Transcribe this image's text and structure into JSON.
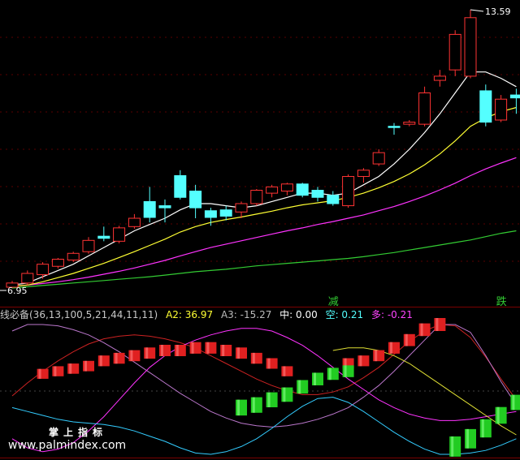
{
  "colors": {
    "up_candle": "#ff3333",
    "down_candle": "#54ffff",
    "ma_fast": "#ffffff",
    "ma_mid": "#ffff33",
    "ma_slow": "#ff33ff",
    "ma_long": "#33cc33",
    "a2": "#ffff33",
    "a3": "#bbbbbb",
    "zhong": "#ffffff",
    "kong": "#54ffff",
    "duo": "#ff44ff",
    "signal_text": "#33cc33",
    "line_red": "#cc2222",
    "line_magenta": "#ff33ff",
    "line_cyan": "#33ccff",
    "line_purple": "#bb77cc",
    "line_yellow": "#dddd33"
  },
  "indicator": {
    "name_params": "线必备(36,13,100,5,21,44,11,11)",
    "a2": "A2: 36.97",
    "a3": "A3: -15.27",
    "zhong": "中: 0.00",
    "kong": "空: 0.21",
    "duo": "多: -0.21"
  },
  "watermark": {
    "line1": "掌上指标",
    "line2": "www.palmindex.com"
  },
  "chart_data": [
    {
      "type": "candlestick",
      "high_label": "13.59",
      "low_label": "6.95",
      "annotations": [
        {
          "text": "减",
          "candle_index": 21
        },
        {
          "text": "跌",
          "candle_index": 32
        }
      ],
      "candles": [
        {
          "o": 6.95,
          "h": 7.1,
          "l": 6.93,
          "c": 7.05
        },
        {
          "o": 7.05,
          "h": 7.35,
          "l": 7.0,
          "c": 7.28
        },
        {
          "o": 7.25,
          "h": 7.55,
          "l": 7.15,
          "c": 7.5
        },
        {
          "o": 7.45,
          "h": 7.65,
          "l": 7.4,
          "c": 7.62
        },
        {
          "o": 7.6,
          "h": 7.8,
          "l": 7.55,
          "c": 7.76
        },
        {
          "o": 7.8,
          "h": 8.15,
          "l": 7.75,
          "c": 8.07
        },
        {
          "o": 8.17,
          "h": 8.4,
          "l": 8.05,
          "c": 8.12
        },
        {
          "o": 8.05,
          "h": 8.42,
          "l": 8.0,
          "c": 8.37
        },
        {
          "o": 8.4,
          "h": 8.7,
          "l": 8.35,
          "c": 8.6
        },
        {
          "o": 9.0,
          "h": 9.35,
          "l": 8.5,
          "c": 8.62
        },
        {
          "o": 8.9,
          "h": 9.05,
          "l": 8.5,
          "c": 8.85
        },
        {
          "o": 9.62,
          "h": 9.75,
          "l": 9.05,
          "c": 9.1
        },
        {
          "o": 9.25,
          "h": 9.4,
          "l": 8.6,
          "c": 8.85
        },
        {
          "o": 8.78,
          "h": 8.85,
          "l": 8.42,
          "c": 8.62
        },
        {
          "o": 8.8,
          "h": 8.9,
          "l": 8.55,
          "c": 8.65
        },
        {
          "o": 8.75,
          "h": 9.0,
          "l": 8.6,
          "c": 8.95
        },
        {
          "o": 8.95,
          "h": 9.3,
          "l": 8.9,
          "c": 9.27
        },
        {
          "o": 9.2,
          "h": 9.4,
          "l": 9.1,
          "c": 9.35
        },
        {
          "o": 9.25,
          "h": 9.45,
          "l": 9.15,
          "c": 9.42
        },
        {
          "o": 9.42,
          "h": 9.45,
          "l": 9.1,
          "c": 9.15
        },
        {
          "o": 9.27,
          "h": 9.35,
          "l": 9.0,
          "c": 9.1
        },
        {
          "o": 9.15,
          "h": 9.25,
          "l": 8.9,
          "c": 8.95
        },
        {
          "o": 8.9,
          "h": 9.65,
          "l": 8.85,
          "c": 9.6
        },
        {
          "o": 9.6,
          "h": 9.8,
          "l": 9.45,
          "c": 9.75
        },
        {
          "o": 9.9,
          "h": 10.25,
          "l": 9.85,
          "c": 10.17
        },
        {
          "o": 10.8,
          "h": 10.88,
          "l": 10.6,
          "c": 10.78
        },
        {
          "o": 10.85,
          "h": 10.95,
          "l": 10.8,
          "c": 10.9
        },
        {
          "o": 10.85,
          "h": 11.75,
          "l": 10.8,
          "c": 11.6
        },
        {
          "o": 11.9,
          "h": 12.15,
          "l": 11.75,
          "c": 12.0
        },
        {
          "o": 12.15,
          "h": 13.1,
          "l": 12.0,
          "c": 13.0
        },
        {
          "o": 12.0,
          "h": 13.59,
          "l": 11.95,
          "c": 13.4
        },
        {
          "o": 11.65,
          "h": 11.8,
          "l": 10.8,
          "c": 10.9
        },
        {
          "o": 10.95,
          "h": 11.55,
          "l": 10.9,
          "c": 11.45
        },
        {
          "o": 11.55,
          "h": 11.7,
          "l": 11.1,
          "c": 11.48
        }
      ],
      "ma_fast": [
        7.0,
        7.05,
        7.2,
        7.35,
        7.5,
        7.7,
        7.9,
        8.1,
        8.3,
        8.45,
        8.6,
        8.8,
        8.95,
        8.95,
        8.9,
        8.85,
        8.9,
        9.0,
        9.1,
        9.2,
        9.2,
        9.15,
        9.2,
        9.4,
        9.6,
        9.9,
        10.25,
        10.65,
        11.1,
        11.6,
        12.1,
        12.1,
        11.95,
        11.75
      ],
      "ma_mid": [
        6.97,
        7.0,
        7.08,
        7.18,
        7.28,
        7.4,
        7.52,
        7.66,
        7.8,
        7.95,
        8.1,
        8.27,
        8.4,
        8.5,
        8.57,
        8.63,
        8.7,
        8.77,
        8.85,
        8.92,
        8.97,
        9.02,
        9.1,
        9.2,
        9.33,
        9.48,
        9.66,
        9.88,
        10.14,
        10.45,
        10.8,
        11.0,
        11.15,
        11.25
      ],
      "ma_slow": [
        6.97,
        7.0,
        7.04,
        7.08,
        7.13,
        7.19,
        7.26,
        7.33,
        7.41,
        7.5,
        7.59,
        7.7,
        7.8,
        7.9,
        7.98,
        8.06,
        8.14,
        8.22,
        8.3,
        8.37,
        8.45,
        8.52,
        8.6,
        8.68,
        8.78,
        8.88,
        9.0,
        9.13,
        9.28,
        9.44,
        9.62,
        9.78,
        9.92,
        10.05
      ],
      "ma_long": [
        6.93,
        6.96,
        6.99,
        7.02,
        7.05,
        7.08,
        7.11,
        7.14,
        7.17,
        7.2,
        7.24,
        7.28,
        7.32,
        7.35,
        7.38,
        7.42,
        7.46,
        7.49,
        7.52,
        7.55,
        7.58,
        7.61,
        7.64,
        7.68,
        7.73,
        7.78,
        7.84,
        7.9,
        7.96,
        8.02,
        8.08,
        8.16,
        8.24,
        8.3
      ]
    },
    {
      "type": "indicator",
      "ylim": [
        0,
        1
      ],
      "series": [
        {
          "color_key": "line_red",
          "values": [
            0.45,
            0.55,
            0.64,
            0.72,
            0.79,
            0.85,
            0.89,
            0.91,
            0.92,
            0.91,
            0.89,
            0.86,
            0.82,
            0.76,
            0.7,
            0.64,
            0.58,
            0.53,
            0.49,
            0.46,
            0.46,
            0.48,
            0.52,
            0.59,
            0.67,
            0.77,
            0.87,
            0.95,
            1.0,
            0.99,
            0.9,
            0.75,
            0.58,
            0.42
          ]
        },
        {
          "color_key": "line_purple",
          "values": [
            0.95,
            1.0,
            1.0,
            0.99,
            0.96,
            0.92,
            0.86,
            0.79,
            0.71,
            0.63,
            0.55,
            0.47,
            0.4,
            0.33,
            0.28,
            0.24,
            0.22,
            0.21,
            0.22,
            0.24,
            0.27,
            0.31,
            0.36,
            0.44,
            0.53,
            0.64,
            0.76,
            0.88,
            1.0,
            1.0,
            0.94,
            0.76,
            0.56,
            0.38
          ]
        },
        {
          "color_key": "line_magenta",
          "values": [
            0.12,
            0.05,
            0.02,
            0.04,
            0.09,
            0.18,
            0.29,
            0.42,
            0.55,
            0.67,
            0.76,
            0.83,
            0.88,
            0.92,
            0.95,
            0.97,
            0.97,
            0.95,
            0.9,
            0.84,
            0.76,
            0.67,
            0.58,
            0.5,
            0.42,
            0.36,
            0.31,
            0.28,
            0.26,
            0.26,
            0.27,
            0.29,
            0.31,
            0.33
          ]
        },
        {
          "color_key": "line_cyan",
          "values": [
            0.36,
            0.33,
            0.3,
            0.27,
            0.25,
            0.24,
            0.23,
            0.21,
            0.18,
            0.14,
            0.1,
            0.05,
            0.01,
            0.0,
            0.02,
            0.06,
            0.12,
            0.2,
            0.29,
            0.37,
            0.43,
            0.44,
            0.4,
            0.33,
            0.25,
            0.17,
            0.1,
            0.04,
            0.0,
            0.0,
            0.01,
            0.03,
            0.07,
            0.12
          ]
        },
        {
          "color_key": "line_yellow",
          "values": [
            null,
            null,
            null,
            null,
            null,
            null,
            null,
            null,
            null,
            null,
            null,
            null,
            null,
            null,
            null,
            null,
            null,
            null,
            null,
            null,
            null,
            0.8,
            0.82,
            0.82,
            0.8,
            0.76,
            0.7,
            0.62,
            0.54,
            0.46,
            0.38,
            0.3,
            0.22,
            0.15
          ]
        }
      ],
      "bars": [
        {
          "color": "red",
          "values": [
            null,
            null,
            0.62,
            0.64,
            0.66,
            0.68,
            0.72,
            0.74,
            0.76,
            0.78,
            0.8,
            0.8,
            0.82,
            0.82,
            0.8,
            0.78,
            0.74,
            0.7,
            0.64,
            null,
            null,
            null,
            0.7,
            0.72,
            0.76,
            0.82,
            0.88,
            0.96,
            1.0,
            null,
            null,
            null,
            null,
            null
          ]
        },
        {
          "color": "green",
          "values": [
            null,
            null,
            null,
            null,
            null,
            null,
            null,
            null,
            null,
            null,
            null,
            null,
            null,
            null,
            null,
            0.36,
            0.38,
            0.42,
            0.46,
            0.52,
            0.58,
            0.62,
            0.64,
            null,
            null,
            null,
            null,
            null,
            null,
            0.06,
            0.12,
            0.2,
            0.3,
            0.4
          ]
        }
      ]
    }
  ]
}
